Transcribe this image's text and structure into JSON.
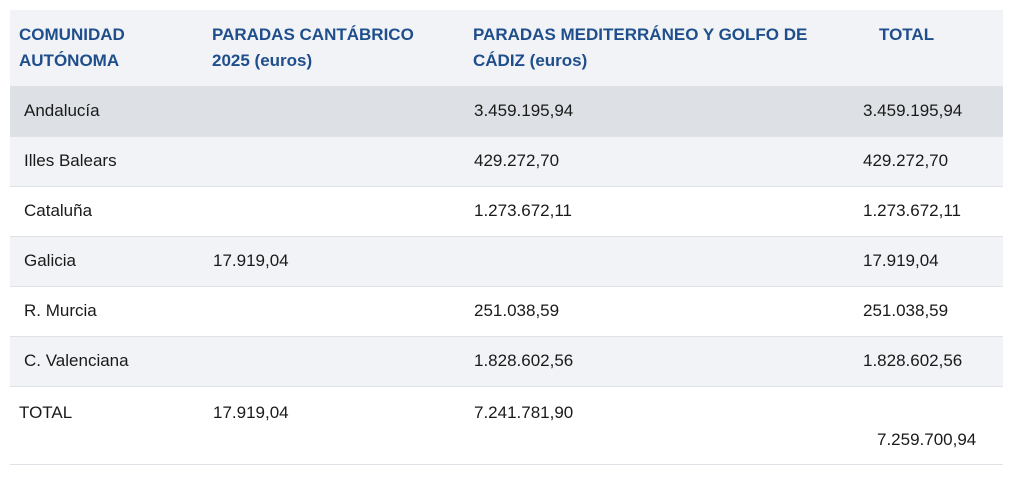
{
  "table": {
    "headers": [
      "COMUNIDAD AUTÓNOMA",
      "PARADAS CANTÁBRICO 2025 (euros)",
      "PARADAS MEDITERRÁNEO Y GOLFO DE CÁDIZ (euros)",
      "TOTAL"
    ],
    "rows": [
      {
        "region": "Andalucía",
        "cantabrico": "",
        "mediterraneo": "3.459.195,94",
        "total": "3.459.195,94"
      },
      {
        "region": "Illes Balears",
        "cantabrico": "",
        "mediterraneo": "429.272,70",
        "total": "429.272,70"
      },
      {
        "region": "Cataluña",
        "cantabrico": "",
        "mediterraneo": "1.273.672,11",
        "total": "1.273.672,11"
      },
      {
        "region": "Galicia",
        "cantabrico": "17.919,04",
        "mediterraneo": "",
        "total": "17.919,04"
      },
      {
        "region": "R. Murcia",
        "cantabrico": "",
        "mediterraneo": "251.038,59",
        "total": "251.038,59"
      },
      {
        "region": "C. Valenciana",
        "cantabrico": "",
        "mediterraneo": "1.828.602,56",
        "total": "1.828.602,56"
      }
    ],
    "totals": {
      "label": "TOTAL",
      "cantabrico": "17.919,04",
      "mediterraneo": "7.241.781,90",
      "total": "7.259.700,94"
    }
  },
  "colors": {
    "header_text": "#1f4e8c",
    "header_bg": "#f1f3f6",
    "highlight_row_bg": "#dde1e6",
    "alt_row_bg": "#f1f3f6"
  }
}
